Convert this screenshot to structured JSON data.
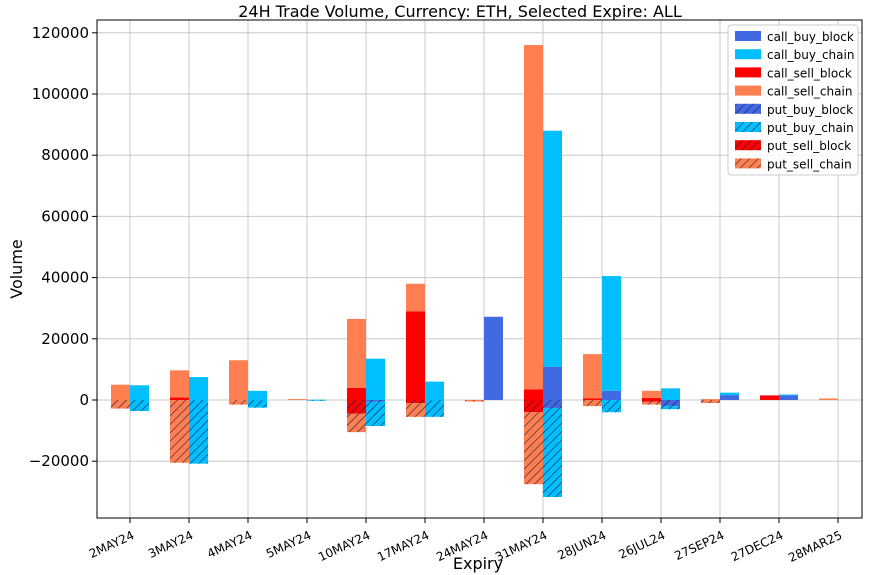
{
  "chart_data": {
    "type": "bar",
    "title": "24H Trade Volume, Currency: ETH, Selected Expire: ALL",
    "xlabel": "Expiry",
    "ylabel": "Volume",
    "ylim": [
      -38500,
      124000
    ],
    "yticks": [
      -20000,
      0,
      20000,
      40000,
      60000,
      80000,
      100000,
      120000
    ],
    "ytick_labels": [
      "−20000",
      "0",
      "20000",
      "40000",
      "60000",
      "80000",
      "100000",
      "120000"
    ],
    "grid": true,
    "legend_placement": "top-right",
    "categories": [
      "2MAY24",
      "3MAY24",
      "4MAY24",
      "5MAY24",
      "10MAY24",
      "17MAY24",
      "24MAY24",
      "31MAY24",
      "28JUN24",
      "26JUL24",
      "27SEP24",
      "27DEC24",
      "28MAR25"
    ],
    "series": [
      {
        "name": "call_buy_block",
        "color": "#4169e1",
        "hatch": false,
        "values": [
          0,
          0,
          0,
          0,
          0,
          0,
          27200,
          10800,
          3000,
          0,
          1600,
          1500,
          0
        ]
      },
      {
        "name": "call_buy_chain",
        "color": "#00bfff",
        "hatch": false,
        "values": [
          4800,
          7500,
          3000,
          100,
          13500,
          6000,
          0,
          77200,
          37500,
          3800,
          800,
          300,
          0
        ]
      },
      {
        "name": "call_sell_block",
        "color": "#ff0000",
        "hatch": false,
        "values": [
          0,
          800,
          0,
          0,
          4000,
          29000,
          0,
          3500,
          500,
          700,
          0,
          1500,
          0
        ]
      },
      {
        "name": "call_sell_chain",
        "color": "#ff7f50",
        "hatch": false,
        "values": [
          5000,
          8900,
          13000,
          300,
          22500,
          9000,
          0,
          112500,
          14500,
          2300,
          300,
          0,
          500
        ]
      },
      {
        "name": "put_buy_block",
        "color": "#4169e1",
        "hatch": true,
        "values": [
          0,
          0,
          0,
          0,
          -500,
          0,
          0,
          -2600,
          0,
          -2000,
          0,
          0,
          0
        ]
      },
      {
        "name": "put_buy_chain",
        "color": "#00bfff",
        "hatch": true,
        "values": [
          -3600,
          -20800,
          -2500,
          -100,
          -8000,
          -5500,
          0,
          -29100,
          -4000,
          -1000,
          0,
          0,
          0
        ]
      },
      {
        "name": "put_sell_block",
        "color": "#ff0000",
        "hatch": true,
        "values": [
          0,
          0,
          0,
          0,
          -4500,
          -1000,
          0,
          -4000,
          0,
          -500,
          0,
          0,
          0
        ]
      },
      {
        "name": "put_sell_chain",
        "color": "#ff7f50",
        "hatch": true,
        "values": [
          -2800,
          -20500,
          -1500,
          0,
          -6000,
          -4500,
          -500,
          -23500,
          -2000,
          -1000,
          -1000,
          0,
          0
        ]
      }
    ]
  }
}
